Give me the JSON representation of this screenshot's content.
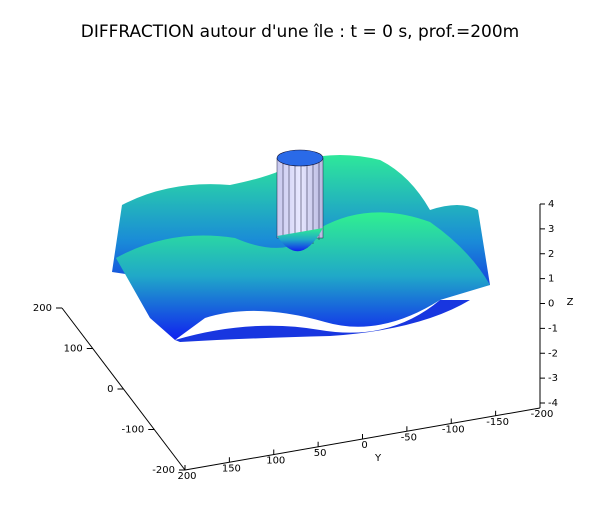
{
  "chart_data": {
    "type": "surface",
    "title": "DIFFRACTION autour d'une île : t = 0 s, prof.=200m",
    "xlim": [
      -200,
      200
    ],
    "xticks": [
      200,
      100,
      0,
      -100,
      -200
    ],
    "ylim": [
      -200,
      200
    ],
    "yticks": [
      200,
      150,
      100,
      50,
      0,
      -50,
      -100,
      -150,
      -200
    ],
    "ylabel": "Y",
    "zlim": [
      -4,
      4
    ],
    "zticks": [
      4,
      3,
      2,
      1,
      0,
      -1,
      -2,
      -3,
      -4
    ],
    "zlabel": "Z"
  }
}
